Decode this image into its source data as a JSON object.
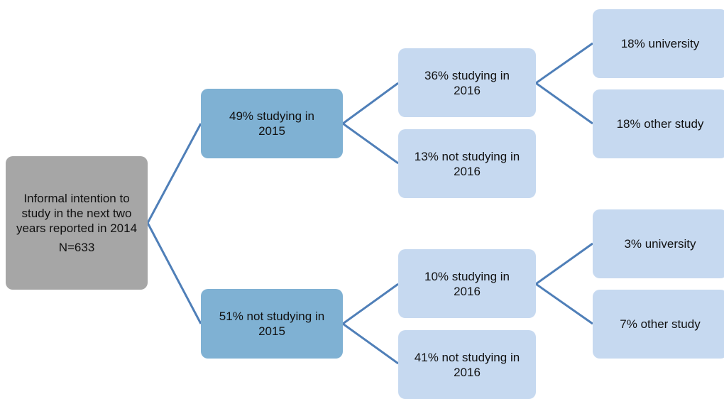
{
  "nodes": [
    {
      "label": "Informal intention to study in the next two years reported in 2014",
      "note": "N=633"
    },
    {
      "label": "49% studying in 2015"
    },
    {
      "label": "51% not studying in 2015"
    },
    {
      "label": "36% studying in 2016"
    },
    {
      "label": "13% not studying in 2016"
    },
    {
      "label": "10% studying in 2016"
    },
    {
      "label": "41% not studying in 2016"
    },
    {
      "label": "18% university"
    },
    {
      "label": "18% other study"
    },
    {
      "label": "3% university"
    },
    {
      "label": "7% other study"
    }
  ]
}
